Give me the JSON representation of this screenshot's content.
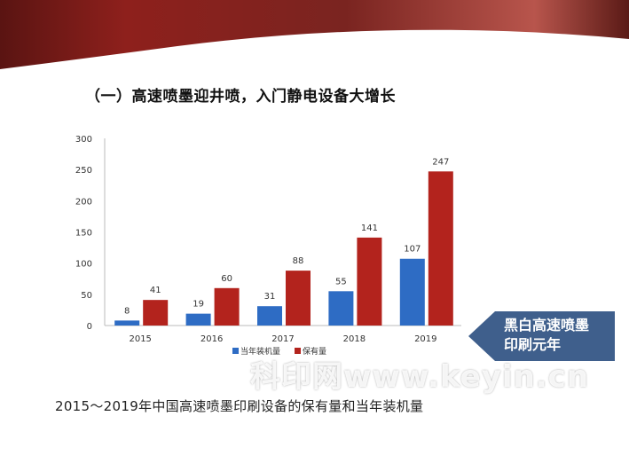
{
  "slide": {
    "heading": "（一）高速喷墨迎井喷，入门静电设备大增长",
    "callout": [
      "黑白高速喷墨",
      "印刷元年"
    ],
    "caption": "2015～2019年中国高速喷墨印刷设备的保有量和当年装机量",
    "watermark": "科印网www.keyin.cn"
  },
  "chart_data": {
    "type": "bar",
    "categories": [
      "2015",
      "2016",
      "2017",
      "2018",
      "2019"
    ],
    "series": [
      {
        "name": "当年装机量",
        "color": "#2e6cc4",
        "values": [
          8,
          19,
          31,
          55,
          107
        ]
      },
      {
        "name": "保有量",
        "color": "#b3231d",
        "values": [
          41,
          60,
          88,
          141,
          247
        ]
      }
    ],
    "ylim": [
      0,
      300
    ],
    "yticks": [
      "0",
      "50",
      "100",
      "150",
      "200",
      "250",
      "300"
    ],
    "legend": "bottom",
    "grid": false
  }
}
